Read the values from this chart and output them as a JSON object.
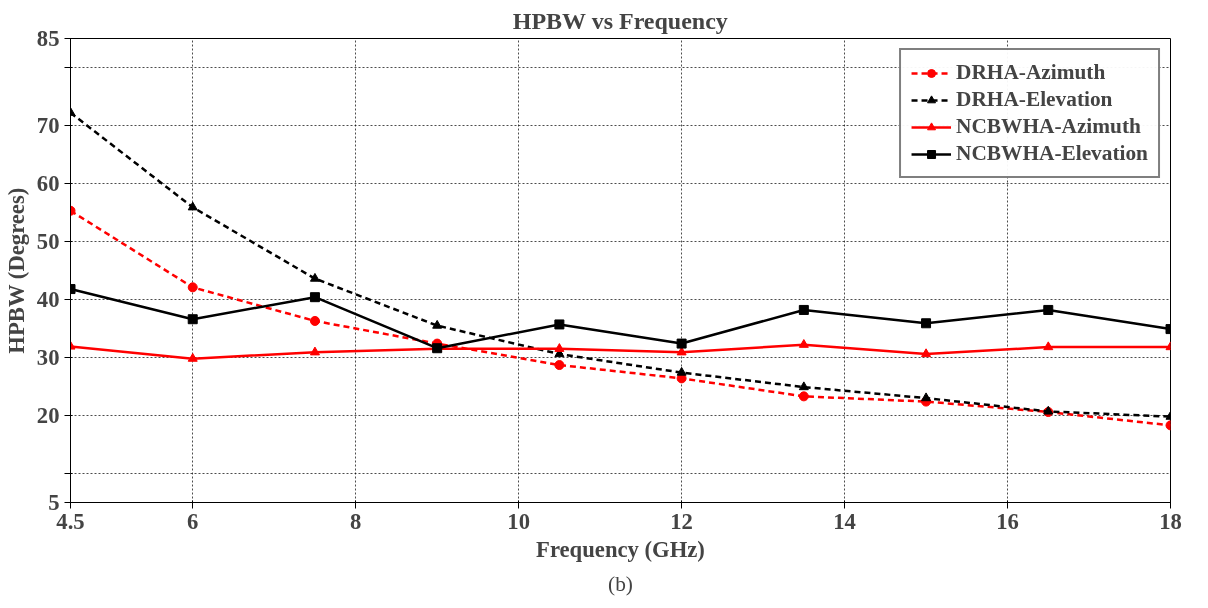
{
  "chart_data": {
    "type": "line",
    "title": "HPBW vs Frequency",
    "xlabel": "Frequency (GHz)",
    "ylabel": "HPBW (Degrees)",
    "annotations": [
      "(b)"
    ],
    "x": [
      4.5,
      6,
      7.5,
      9,
      10.5,
      12,
      13.5,
      15,
      16.5,
      18
    ],
    "xlim": [
      4.5,
      18
    ],
    "xticks": [
      4.5,
      6,
      8,
      10,
      12,
      14,
      16,
      18
    ],
    "ylim": [
      5,
      85
    ],
    "yticks": [
      5,
      {
        "value": 10,
        "label": null
      },
      20,
      30,
      40,
      50,
      60,
      70,
      {
        "value": 80,
        "label": null
      },
      85
    ],
    "grid": true,
    "legend": "top right",
    "series": [
      {
        "name": "DRHA-Azimuth",
        "color": "#ff0000",
        "marker": "circle",
        "line_style": "dashed",
        "values": [
          55.3,
          42.1,
          36.3,
          32.4,
          28.7,
          26.4,
          23.3,
          22.4,
          20.6,
          18.3
        ]
      },
      {
        "name": "DRHA-Elevation",
        "color": "#000000",
        "marker": "triangle",
        "line_style": "dashed",
        "values": [
          72.2,
          55.9,
          43.6,
          35.5,
          30.6,
          27.4,
          24.9,
          23.0,
          20.7,
          19.8
        ]
      },
      {
        "name": "NCBWHA-Azimuth",
        "color": "#ff0000",
        "marker": "triangle",
        "line_style": "solid",
        "values": [
          31.9,
          29.8,
          30.9,
          31.5,
          31.5,
          30.9,
          32.2,
          30.6,
          31.8,
          31.8
        ]
      },
      {
        "name": "NCBWHA-Elevation",
        "color": "#000000",
        "marker": "square",
        "line_style": "solid",
        "values": [
          41.8,
          36.6,
          40.4,
          31.6,
          35.7,
          32.4,
          38.2,
          35.9,
          38.2,
          34.9
        ]
      }
    ]
  }
}
